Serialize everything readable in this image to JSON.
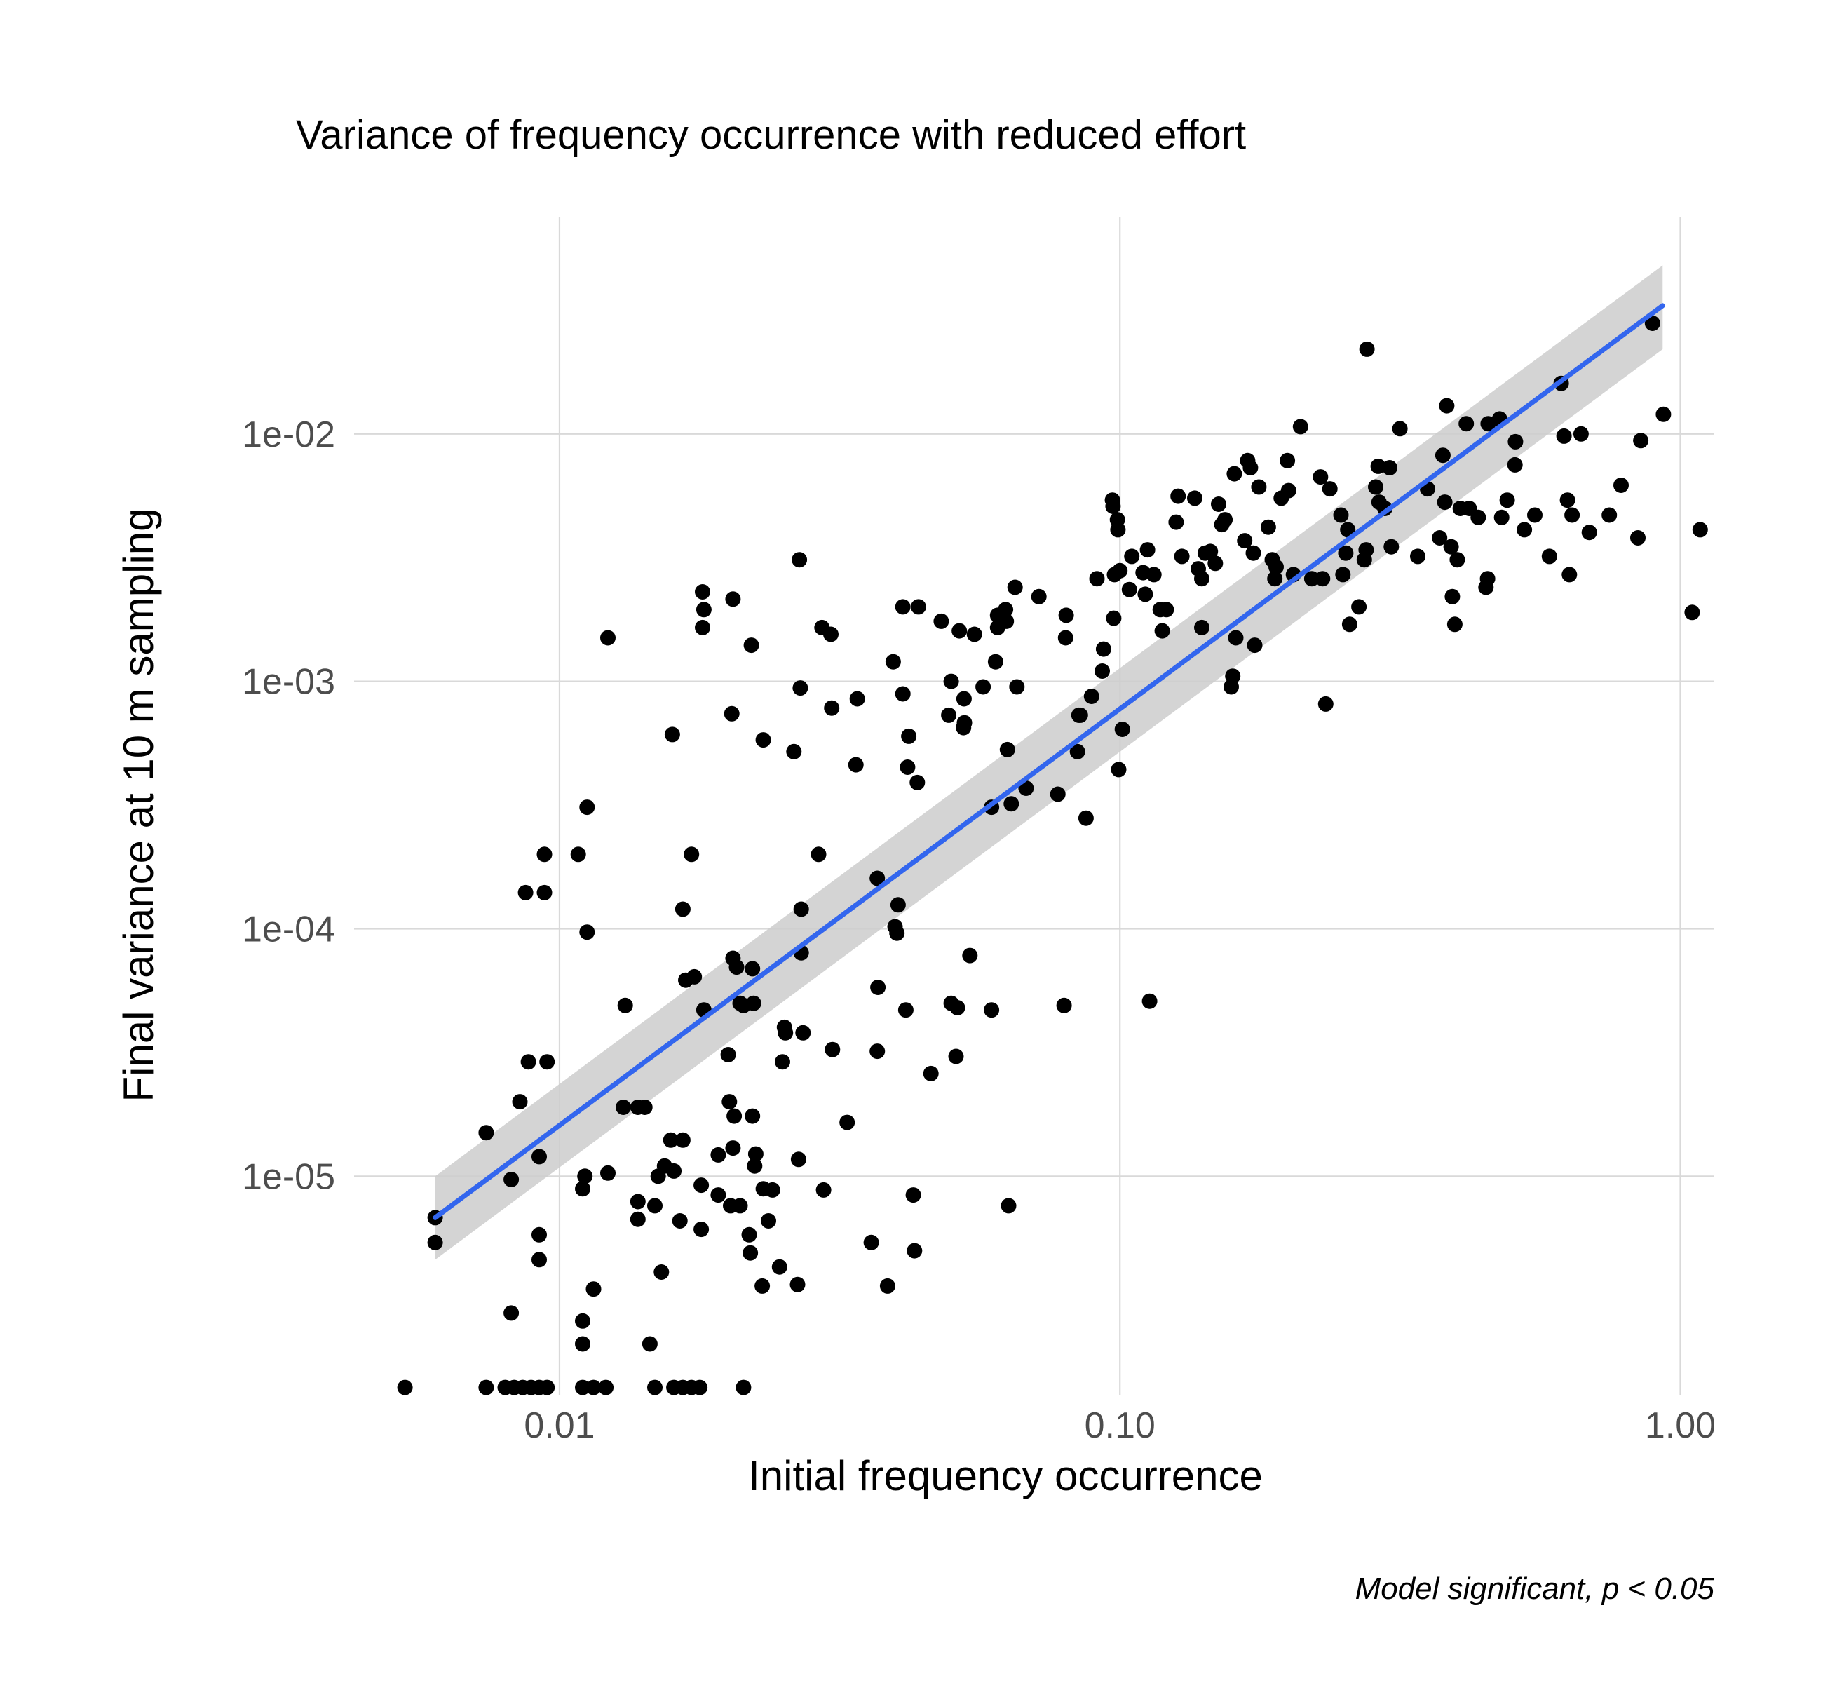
{
  "chart_data": {
    "type": "scatter",
    "title": "Variance of frequency occurrence with reduced effort",
    "xlabel": "Initial frequency occurrence",
    "ylabel": "Final variance at 10 m sampling",
    "caption": "Model significant, p  < 0.05",
    "x_scale": "log10",
    "y_scale": "log10",
    "xlim": [
      0.0043,
      1.15
    ],
    "ylim": [
      1.3e-06,
      0.075
    ],
    "x_ticks": [
      {
        "value": 0.01,
        "label": "0.01"
      },
      {
        "value": 0.1,
        "label": "0.10"
      },
      {
        "value": 1.0,
        "label": "1.00"
      }
    ],
    "y_ticks": [
      {
        "value": 1e-05,
        "label": "1e-05"
      },
      {
        "value": 0.0001,
        "label": "1e-04"
      },
      {
        "value": 0.001,
        "label": "1e-03"
      },
      {
        "value": 0.01,
        "label": "1e-02"
      }
    ],
    "grid": true,
    "point_color": "#000000",
    "fit_color": "#3366ee",
    "band_color": "#cccccc",
    "fit": {
      "type": "linear-log-log",
      "x_range": [
        0.006,
        0.93
      ],
      "start": [
        0.006,
        6.8e-06
      ],
      "end": [
        0.93,
        0.033
      ],
      "band_start": [
        4.6e-06,
        1e-05
      ],
      "band_end": [
        0.022,
        0.048
      ]
    },
    "points": [
      [
        0.0053,
        1.4e-06
      ],
      [
        0.0074,
        1.4e-06
      ],
      [
        0.008,
        1.4e-06
      ],
      [
        0.0083,
        1.4e-06
      ],
      [
        0.0086,
        1.4e-06
      ],
      [
        0.0089,
        1.4e-06
      ],
      [
        0.0092,
        1.4e-06
      ],
      [
        0.0095,
        1.4e-06
      ],
      [
        0.011,
        1.4e-06
      ],
      [
        0.0115,
        1.4e-06
      ],
      [
        0.0121,
        1.4e-06
      ],
      [
        0.0148,
        1.4e-06
      ],
      [
        0.016,
        1.4e-06
      ],
      [
        0.0166,
        1.4e-06
      ],
      [
        0.0172,
        1.4e-06
      ],
      [
        0.0178,
        1.4e-06
      ],
      [
        0.0213,
        1.4e-06
      ],
      [
        0.006,
        6.8e-06
      ],
      [
        0.006,
        5.4e-06
      ],
      [
        0.0074,
        1.5e-05
      ],
      [
        0.0082,
        9.7e-06
      ],
      [
        0.0082,
        2.8e-06
      ],
      [
        0.0085,
        2e-05
      ],
      [
        0.0087,
        0.00014
      ],
      [
        0.0088,
        2.9e-05
      ],
      [
        0.0092,
        1.2e-05
      ],
      [
        0.0092,
        5.8e-06
      ],
      [
        0.0092,
        4.6e-06
      ],
      [
        0.0094,
        0.00014
      ],
      [
        0.0094,
        0.0002
      ],
      [
        0.0095,
        2.9e-05
      ],
      [
        0.0108,
        0.0002
      ],
      [
        0.011,
        2.6e-06
      ],
      [
        0.011,
        2.1e-06
      ],
      [
        0.011,
        8.9e-06
      ],
      [
        0.0111,
        1e-05
      ],
      [
        0.0112,
        0.00031
      ],
      [
        0.0112,
        9.7e-05
      ],
      [
        0.0115,
        3.5e-06
      ],
      [
        0.0122,
        0.0015
      ],
      [
        0.0122,
        1.03e-05
      ],
      [
        0.013,
        1.9e-05
      ],
      [
        0.0131,
        4.9e-05
      ],
      [
        0.0138,
        1.9e-05
      ],
      [
        0.0138,
        7.9e-06
      ],
      [
        0.0138,
        6.7e-06
      ],
      [
        0.0142,
        1.9e-05
      ],
      [
        0.0145,
        2.1e-06
      ],
      [
        0.0148,
        7.6e-06
      ],
      [
        0.015,
        1e-05
      ],
      [
        0.0152,
        4.1e-06
      ],
      [
        0.0154,
        1.1e-05
      ],
      [
        0.0158,
        1.4e-05
      ],
      [
        0.0159,
        0.00061
      ],
      [
        0.016,
        1.05e-05
      ],
      [
        0.0164,
        6.6e-06
      ],
      [
        0.0166,
        0.00012
      ],
      [
        0.0166,
        1.4e-05
      ],
      [
        0.0168,
        6.2e-05
      ],
      [
        0.0172,
        0.0002
      ],
      [
        0.0174,
        6.4e-05
      ],
      [
        0.0179,
        9.2e-06
      ],
      [
        0.0179,
        6.1e-06
      ],
      [
        0.018,
        0.0023
      ],
      [
        0.018,
        0.00165
      ],
      [
        0.0181,
        0.00195
      ],
      [
        0.0181,
        4.7e-05
      ],
      [
        0.0192,
        8.4e-06
      ],
      [
        0.0192,
        1.22e-05
      ],
      [
        0.02,
        3.1e-05
      ],
      [
        0.0201,
        2e-05
      ],
      [
        0.0202,
        7.6e-06
      ],
      [
        0.0203,
        0.00074
      ],
      [
        0.0204,
        0.00215
      ],
      [
        0.0204,
        7.6e-05
      ],
      [
        0.0204,
        1.3e-05
      ],
      [
        0.0205,
        1.75e-05
      ],
      [
        0.0207,
        7e-05
      ],
      [
        0.021,
        7.6e-06
      ],
      [
        0.021,
        5e-05
      ],
      [
        0.0213,
        4.9e-05
      ],
      [
        0.0218,
        5.8e-06
      ],
      [
        0.0219,
        4.9e-06
      ],
      [
        0.022,
        0.0014
      ],
      [
        0.0221,
        1.75e-05
      ],
      [
        0.0221,
        6.9e-05
      ],
      [
        0.0222,
        5e-05
      ],
      [
        0.0223,
        1.1e-05
      ],
      [
        0.0224,
        1.23e-05
      ],
      [
        0.023,
        3.6e-06
      ],
      [
        0.0231,
        8.9e-06
      ],
      [
        0.0231,
        0.00058
      ],
      [
        0.0236,
        6.6e-06
      ],
      [
        0.024,
        8.8e-06
      ],
      [
        0.0247,
        4.3e-06
      ],
      [
        0.025,
        2.9e-05
      ],
      [
        0.0252,
        4e-05
      ],
      [
        0.0253,
        3.8e-05
      ],
      [
        0.0262,
        0.00052
      ],
      [
        0.0266,
        3.65e-06
      ],
      [
        0.0267,
        1.17e-05
      ],
      [
        0.0268,
        0.0031
      ],
      [
        0.0269,
        0.00094
      ],
      [
        0.027,
        0.00012
      ],
      [
        0.027,
        8e-05
      ],
      [
        0.0272,
        3.8e-05
      ],
      [
        0.029,
        0.0002
      ],
      [
        0.0294,
        0.00165
      ],
      [
        0.0296,
        8.8e-06
      ],
      [
        0.0305,
        0.00155
      ],
      [
        0.0306,
        0.00078
      ],
      [
        0.0307,
        3.25e-05
      ],
      [
        0.0326,
        1.65e-05
      ],
      [
        0.0338,
        0.00046
      ],
      [
        0.034,
        0.00085
      ],
      [
        0.036,
        5.4e-06
      ],
      [
        0.0369,
        0.00016
      ],
      [
        0.0369,
        3.2e-05
      ],
      [
        0.037,
        5.8e-05
      ],
      [
        0.0385,
        3.6e-06
      ],
      [
        0.0394,
        0.0012
      ],
      [
        0.0397,
        0.000102
      ],
      [
        0.04,
        9.6e-05
      ],
      [
        0.0402,
        0.000125
      ],
      [
        0.041,
        0.002
      ],
      [
        0.041,
        0.00089
      ],
      [
        0.0415,
        4.7e-05
      ],
      [
        0.0418,
        0.00045
      ],
      [
        0.042,
        0.0006
      ],
      [
        0.0428,
        8.4e-06
      ],
      [
        0.043,
        5e-06
      ],
      [
        0.0435,
        0.00039
      ],
      [
        0.0437,
        0.002
      ],
      [
        0.046,
        2.6e-05
      ],
      [
        0.048,
        0.00175
      ],
      [
        0.0495,
        0.00073
      ],
      [
        0.05,
        0.001
      ],
      [
        0.05,
        5e-05
      ],
      [
        0.051,
        3.05e-05
      ],
      [
        0.0513,
        4.8e-05
      ],
      [
        0.0517,
        0.0016
      ],
      [
        0.0526,
        0.00065
      ],
      [
        0.0527,
        0.00085
      ],
      [
        0.0528,
        0.00068
      ],
      [
        0.054,
        7.8e-05
      ],
      [
        0.055,
        0.00155
      ],
      [
        0.057,
        0.00095
      ],
      [
        0.059,
        0.00031
      ],
      [
        0.059,
        4.7e-05
      ],
      [
        0.06,
        0.0012
      ],
      [
        0.0605,
        0.00165
      ],
      [
        0.0605,
        0.00185
      ],
      [
        0.062,
        0.00175
      ],
      [
        0.0625,
        0.00195
      ],
      [
        0.0627,
        0.00175
      ],
      [
        0.063,
        0.00053
      ],
      [
        0.0633,
        7.6e-06
      ],
      [
        0.064,
        0.00032
      ],
      [
        0.065,
        0.0024
      ],
      [
        0.0655,
        0.00095
      ],
      [
        0.068,
        0.00037
      ],
      [
        0.0717,
        0.0022
      ],
      [
        0.0775,
        0.00035
      ],
      [
        0.0795,
        4.9e-05
      ],
      [
        0.08,
        0.0015
      ],
      [
        0.0802,
        0.00185
      ],
      [
        0.084,
        0.00052
      ],
      [
        0.0845,
        0.00073
      ],
      [
        0.085,
        0.00073
      ],
      [
        0.087,
        0.00028
      ],
      [
        0.089,
        0.00087
      ],
      [
        0.091,
        0.0026
      ],
      [
        0.093,
        0.0011
      ],
      [
        0.0935,
        0.00135
      ],
      [
        0.097,
        0.0054
      ],
      [
        0.0972,
        0.0051
      ],
      [
        0.0975,
        0.0018
      ],
      [
        0.0978,
        0.0027
      ],
      [
        0.099,
        0.0045
      ],
      [
        0.0992,
        0.0041
      ],
      [
        0.0995,
        0.00044
      ],
      [
        0.1,
        0.0028
      ],
      [
        0.101,
        0.00064
      ],
      [
        0.104,
        0.00235
      ],
      [
        0.105,
        0.0032
      ],
      [
        0.11,
        0.00275
      ],
      [
        0.111,
        0.00225
      ],
      [
        0.112,
        0.0034
      ],
      [
        0.113,
        5.1e-05
      ],
      [
        0.115,
        0.0027
      ],
      [
        0.118,
        0.00195
      ],
      [
        0.119,
        0.0016
      ],
      [
        0.121,
        0.00195
      ],
      [
        0.126,
        0.0044
      ],
      [
        0.127,
        0.0056
      ],
      [
        0.129,
        0.0032
      ],
      [
        0.136,
        0.0055
      ],
      [
        0.138,
        0.00285
      ],
      [
        0.14,
        0.0026
      ],
      [
        0.14,
        0.00165
      ],
      [
        0.142,
        0.0033
      ],
      [
        0.145,
        0.00335
      ],
      [
        0.148,
        0.003
      ],
      [
        0.15,
        0.0052
      ],
      [
        0.152,
        0.0043
      ],
      [
        0.154,
        0.0045
      ],
      [
        0.158,
        0.00095
      ],
      [
        0.159,
        0.00105
      ],
      [
        0.16,
        0.0069
      ],
      [
        0.161,
        0.0015
      ],
      [
        0.167,
        0.0037
      ],
      [
        0.169,
        0.0078
      ],
      [
        0.171,
        0.0073
      ],
      [
        0.173,
        0.0033
      ],
      [
        0.174,
        0.0014
      ],
      [
        0.177,
        0.0061
      ],
      [
        0.184,
        0.0042
      ],
      [
        0.187,
        0.0031
      ],
      [
        0.189,
        0.0026
      ],
      [
        0.19,
        0.0029
      ],
      [
        0.194,
        0.0055
      ],
      [
        0.199,
        0.0078
      ],
      [
        0.2,
        0.0059
      ],
      [
        0.204,
        0.0027
      ],
      [
        0.21,
        0.0107
      ],
      [
        0.22,
        0.0026
      ],
      [
        0.228,
        0.0067
      ],
      [
        0.23,
        0.0026
      ],
      [
        0.233,
        0.00081
      ],
      [
        0.237,
        0.006
      ],
      [
        0.248,
        0.0047
      ],
      [
        0.25,
        0.0027
      ],
      [
        0.253,
        0.0033
      ],
      [
        0.255,
        0.0041
      ],
      [
        0.257,
        0.0017
      ],
      [
        0.267,
        0.002
      ],
      [
        0.273,
        0.0031
      ],
      [
        0.275,
        0.0034
      ],
      [
        0.276,
        0.022
      ],
      [
        0.286,
        0.0061
      ],
      [
        0.289,
        0.0074
      ],
      [
        0.29,
        0.0053
      ],
      [
        0.297,
        0.005
      ],
      [
        0.303,
        0.0073
      ],
      [
        0.305,
        0.0035
      ],
      [
        0.316,
        0.0105
      ],
      [
        0.34,
        0.0032
      ],
      [
        0.354,
        0.006
      ],
      [
        0.372,
        0.0038
      ],
      [
        0.377,
        0.0082
      ],
      [
        0.38,
        0.0053
      ],
      [
        0.383,
        0.013
      ],
      [
        0.39,
        0.0035
      ],
      [
        0.392,
        0.0022
      ],
      [
        0.396,
        0.0017
      ],
      [
        0.4,
        0.0031
      ],
      [
        0.405,
        0.005
      ],
      [
        0.415,
        0.011
      ],
      [
        0.42,
        0.005
      ],
      [
        0.436,
        0.0046
      ],
      [
        0.45,
        0.0024
      ],
      [
        0.453,
        0.0026
      ],
      [
        0.454,
        0.011
      ],
      [
        0.476,
        0.0115
      ],
      [
        0.48,
        0.0046
      ],
      [
        0.491,
        0.0054
      ],
      [
        0.507,
        0.0075
      ],
      [
        0.508,
        0.0093
      ],
      [
        0.527,
        0.0041
      ],
      [
        0.55,
        0.0047
      ],
      [
        0.584,
        0.0032
      ],
      [
        0.613,
        0.016
      ],
      [
        0.62,
        0.0098
      ],
      [
        0.629,
        0.0054
      ],
      [
        0.634,
        0.0027
      ],
      [
        0.641,
        0.0047
      ],
      [
        0.665,
        0.01
      ],
      [
        0.688,
        0.004
      ],
      [
        0.747,
        0.0047
      ],
      [
        0.784,
        0.0062
      ],
      [
        0.84,
        0.0038
      ],
      [
        0.85,
        0.0094
      ],
      [
        0.892,
        0.028
      ],
      [
        0.933,
        0.012
      ],
      [
        1.05,
        0.0019
      ],
      [
        1.085,
        0.0041
      ]
    ]
  }
}
